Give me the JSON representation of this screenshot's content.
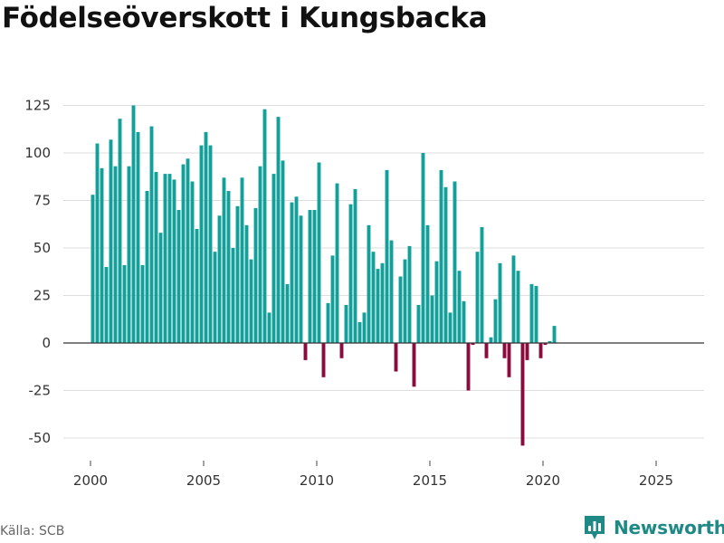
{
  "header": {
    "title": "Födelseöverskott i Kungsbacka"
  },
  "footer": {
    "source": "Källa: SCB",
    "brand": "Newsworthy"
  },
  "colors": {
    "positive": "#14a09a",
    "negative": "#8c0a3c",
    "grid": "#dddddd",
    "axis": "#333333",
    "brand": "#1f8a85"
  },
  "chart_data": {
    "type": "bar",
    "title": "Födelseöverskott i Kungsbacka",
    "xlabel": "",
    "ylabel": "",
    "frequency": "monthly-estimated, one bar per period from 2000",
    "start_year": 2000,
    "periods_per_year": 5,
    "xlim": [
      2000,
      2027
    ],
    "ylim": [
      -60,
      130
    ],
    "yticks": [
      -50,
      -25,
      0,
      25,
      50,
      75,
      100,
      125
    ],
    "xticks": [
      2000,
      2005,
      2010,
      2015,
      2020,
      2025
    ],
    "values": [
      78,
      105,
      92,
      40,
      107,
      93,
      118,
      41,
      93,
      125,
      111,
      41,
      80,
      114,
      90,
      58,
      89,
      89,
      86,
      70,
      94,
      97,
      85,
      60,
      104,
      111,
      104,
      48,
      67,
      87,
      80,
      50,
      72,
      87,
      62,
      44,
      71,
      93,
      123,
      16,
      89,
      119,
      96,
      31,
      74,
      77,
      67,
      -9,
      70,
      70,
      95,
      -18,
      21,
      46,
      84,
      -8,
      20,
      73,
      81,
      11,
      16,
      62,
      48,
      39,
      42,
      91,
      54,
      -15,
      35,
      44,
      51,
      -23,
      20,
      100,
      62,
      25,
      43,
      91,
      82,
      16,
      85,
      38,
      22,
      -25,
      -1,
      48,
      61,
      -8,
      3,
      23,
      42,
      -8,
      -18,
      46,
      38,
      -54,
      -9,
      31,
      30,
      -8,
      -1,
      1,
      9
    ]
  }
}
